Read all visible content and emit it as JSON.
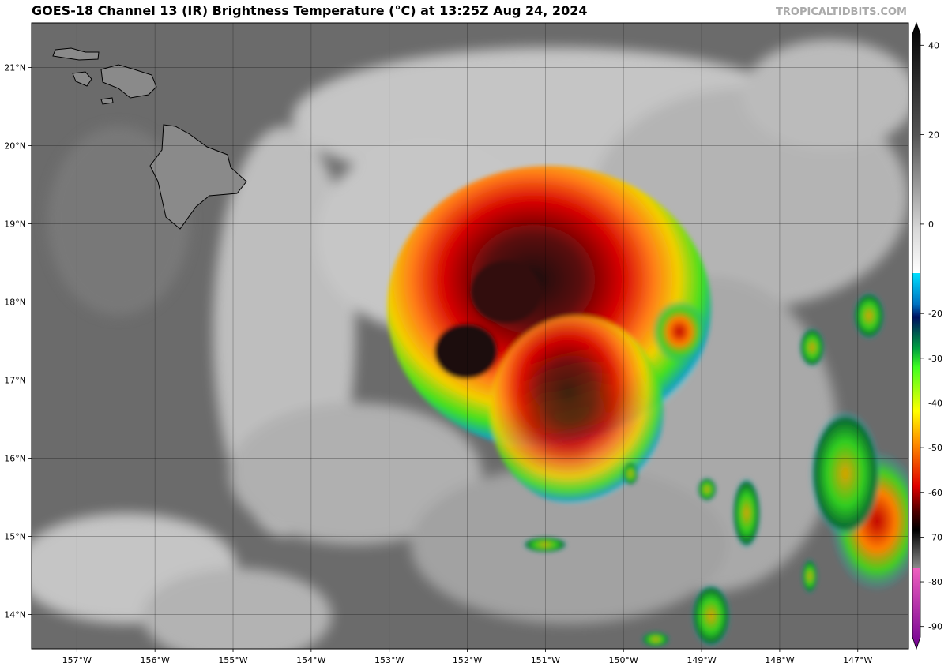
{
  "map": {
    "title": "GOES-18 Channel 13 (IR) Brightness Temperature (°C) at 13:25Z Aug 24, 2024",
    "watermark": "TROPICALTIDBITS.COM",
    "xlim": [
      -157.58,
      -146.35
    ],
    "ylim": [
      13.56,
      21.57
    ],
    "xticks": [
      {
        "value": -157,
        "label": "157°W"
      },
      {
        "value": -156,
        "label": "156°W"
      },
      {
        "value": -155,
        "label": "155°W"
      },
      {
        "value": -154,
        "label": "154°W"
      },
      {
        "value": -153,
        "label": "153°W"
      },
      {
        "value": -152,
        "label": "152°W"
      },
      {
        "value": -151,
        "label": "151°W"
      },
      {
        "value": -150,
        "label": "150°W"
      },
      {
        "value": -149,
        "label": "149°W"
      },
      {
        "value": -148,
        "label": "148°W"
      },
      {
        "value": -147,
        "label": "147°W"
      }
    ],
    "yticks": [
      {
        "value": 14,
        "label": "14°N"
      },
      {
        "value": 15,
        "label": "15°N"
      },
      {
        "value": 16,
        "label": "16°N"
      },
      {
        "value": 17,
        "label": "17°N"
      },
      {
        "value": 18,
        "label": "18°N"
      },
      {
        "value": 19,
        "label": "19°N"
      },
      {
        "value": 20,
        "label": "20°N"
      },
      {
        "value": 21,
        "label": "21°N"
      }
    ],
    "colorbar": {
      "lim": [
        -95,
        45
      ],
      "ticks": [
        40,
        20,
        0,
        -20,
        -30,
        -40,
        -50,
        -60,
        -70,
        -80,
        -90
      ]
    }
  }
}
